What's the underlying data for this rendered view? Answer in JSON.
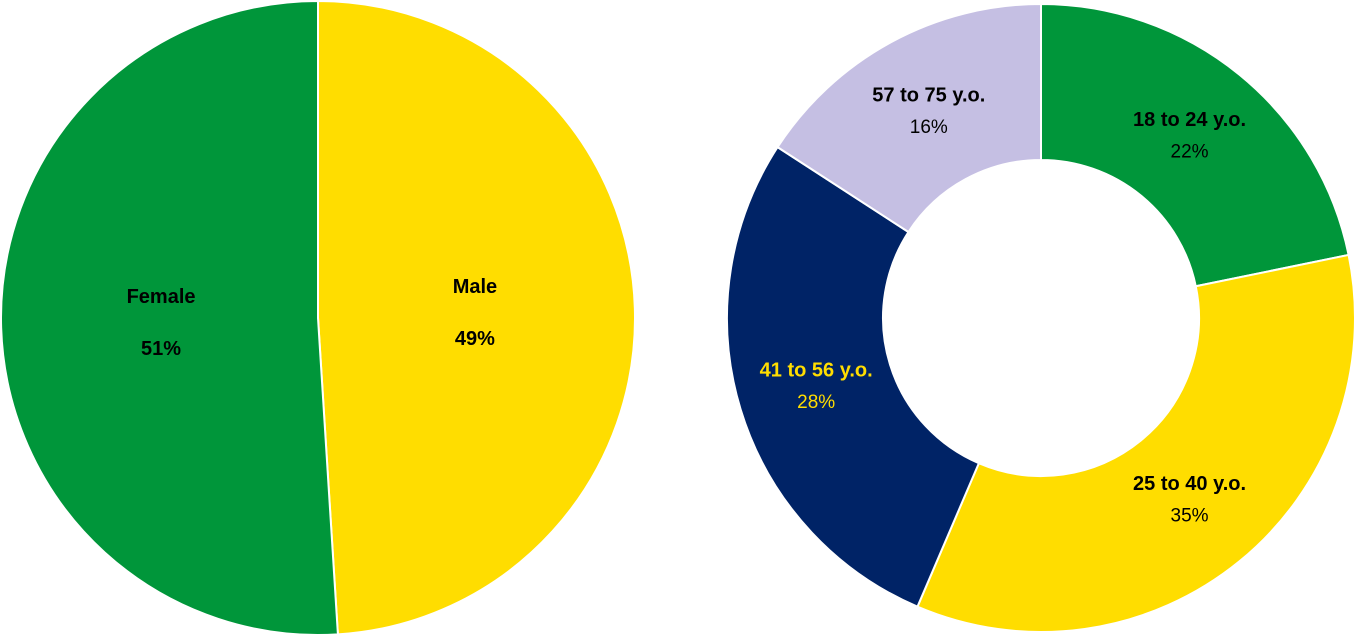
{
  "chart_data": [
    {
      "type": "pie",
      "labels": [
        "Male",
        "Female"
      ],
      "values": [
        49,
        51
      ],
      "value_labels": [
        "49%",
        "51%"
      ],
      "colors": [
        "#FFDD00",
        "#00963A"
      ],
      "label_colors": [
        "#000000",
        "#000000"
      ],
      "start_angle_deg": 0,
      "direction": "clockwise",
      "legend": "none"
    },
    {
      "type": "donut",
      "labels": [
        "18 to 24 y.o.",
        "25 to 40 y.o.",
        "41 to 56 y.o.",
        "57 to 75 y.o."
      ],
      "values": [
        22,
        35,
        28,
        16
      ],
      "value_labels": [
        "22%",
        "35%",
        "28%",
        "16%"
      ],
      "colors": [
        "#00963A",
        "#FFDD00",
        "#002366",
        "#C5BFE3"
      ],
      "label_colors": [
        "#000000",
        "#000000",
        "#FFDD00",
        "#000000"
      ],
      "start_angle_deg": 0,
      "direction": "clockwise",
      "legend": "none"
    }
  ]
}
